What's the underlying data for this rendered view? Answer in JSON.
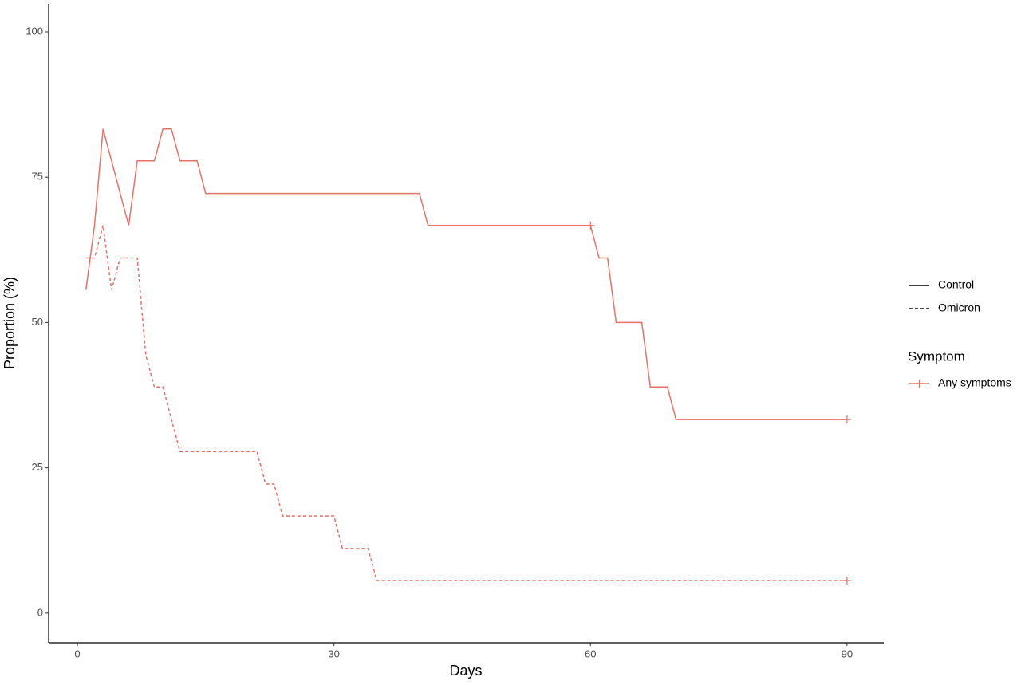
{
  "chart_data": {
    "type": "line",
    "x_label": "Days",
    "y_label": "Proportion (%)",
    "xlim": [
      -3.36,
      94.3
    ],
    "ylim": [
      -5.1,
      104.8
    ],
    "xticks": [
      0,
      30,
      60,
      90
    ],
    "yticks": [
      0,
      25,
      50,
      75,
      100
    ],
    "grid": false,
    "color": "#e8726a",
    "series": [
      {
        "name": "Control",
        "linetype": "solid",
        "x": [
          1,
          2,
          3,
          6,
          7,
          9,
          10,
          11,
          12,
          14,
          15,
          40,
          41,
          60,
          61,
          62,
          63,
          66,
          67,
          69,
          70,
          90
        ],
        "values": [
          55.6,
          66.7,
          83.3,
          66.7,
          77.8,
          77.8,
          83.3,
          83.3,
          77.8,
          77.8,
          72.2,
          72.2,
          66.7,
          66.7,
          61.1,
          61.1,
          50,
          50,
          38.9,
          38.9,
          33.3,
          33.3
        ],
        "censor": {
          "x": [
            60,
            90
          ],
          "y": [
            66.7,
            33.3
          ]
        }
      },
      {
        "name": "Omicron",
        "linetype": "dashed",
        "x": [
          1,
          2,
          3,
          4,
          5,
          7,
          8,
          9,
          10,
          11,
          12,
          21,
          22,
          23,
          24,
          30,
          31,
          34,
          35,
          90
        ],
        "values": [
          61.1,
          61.1,
          66.7,
          55.6,
          61.1,
          61.1,
          44.4,
          38.9,
          38.9,
          33.3,
          27.8,
          27.8,
          22.2,
          22.2,
          16.7,
          16.7,
          11.1,
          11.1,
          5.6,
          5.6
        ],
        "censor": {
          "x": [
            90
          ],
          "y": [
            5.6
          ]
        }
      }
    ],
    "color_legend": {
      "title": "Symptom",
      "labels": [
        "Any symptoms"
      ]
    },
    "legend": "right"
  }
}
